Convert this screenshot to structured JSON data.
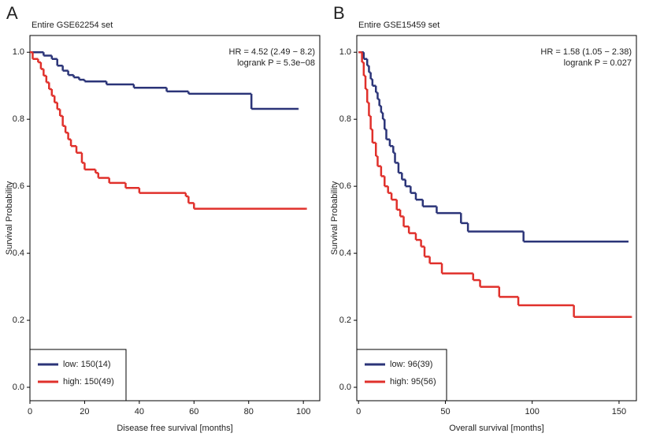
{
  "chart_data": [
    {
      "type": "step",
      "panel": "A",
      "title": "Entire GSE62254 set",
      "annotations": [
        "HR = 4.52 (2.49 − 8.2)",
        "logrank P = 5.3e−08"
      ],
      "x_label": "Disease free survival [months]",
      "y_label": "Survival Probability",
      "xlim": [
        0,
        106
      ],
      "ylim": [
        -0.04,
        1.05
      ],
      "xticks": [
        0,
        20,
        40,
        60,
        80,
        100
      ],
      "yticks": [
        {
          "value": 0,
          "label": "0.0"
        },
        0.2,
        0.4,
        0.6,
        0.8,
        {
          "value": 1,
          "label": "1.0"
        }
      ],
      "legend": "lower left",
      "series": [
        {
          "name": "low: 150(14)",
          "color": "#2b3478",
          "x": [
            0,
            5,
            8,
            10,
            12,
            14,
            16,
            18,
            20,
            28,
            38,
            50,
            58,
            81,
            98
          ],
          "values": [
            1.0,
            0.99,
            0.98,
            0.96,
            0.945,
            0.932,
            0.925,
            0.918,
            0.913,
            0.904,
            0.894,
            0.883,
            0.876,
            0.831,
            0.831
          ]
        },
        {
          "name": "high: 150(49)",
          "color": "#e0302b",
          "x": [
            0,
            1,
            3,
            4,
            5,
            6,
            7,
            8,
            9,
            10,
            11,
            12,
            13,
            14,
            15,
            17,
            19,
            20,
            24,
            25,
            29,
            35,
            40,
            57,
            58,
            60,
            101
          ],
          "values": [
            1.0,
            0.98,
            0.97,
            0.95,
            0.93,
            0.91,
            0.89,
            0.87,
            0.85,
            0.83,
            0.81,
            0.78,
            0.76,
            0.74,
            0.72,
            0.7,
            0.67,
            0.65,
            0.64,
            0.625,
            0.61,
            0.595,
            0.58,
            0.57,
            0.55,
            0.533,
            0.533
          ]
        }
      ]
    },
    {
      "type": "step",
      "panel": "B",
      "title": "Entire GSE15459 set",
      "annotations": [
        "HR = 1.58 (1.05 − 2.38)",
        "logrank P = 0.027"
      ],
      "x_label": "Overall survival [months]",
      "y_label": "Survival Probability",
      "xlim": [
        -1,
        160
      ],
      "ylim": [
        -0.04,
        1.05
      ],
      "xticks": [
        0,
        50,
        100,
        150
      ],
      "yticks": [
        {
          "value": 0,
          "label": "0.0"
        },
        0.2,
        0.4,
        0.6,
        0.8,
        {
          "value": 1,
          "label": "1.0"
        }
      ],
      "legend": "lower left",
      "series": [
        {
          "name": "low: 96(39)",
          "color": "#2b3478",
          "x": [
            0,
            3,
            5,
            6,
            7,
            8,
            10,
            11,
            12,
            13,
            14,
            15,
            16,
            18,
            20,
            21,
            23,
            25,
            27,
            30,
            33,
            37,
            45,
            59,
            63,
            95,
            155
          ],
          "values": [
            1.0,
            0.98,
            0.96,
            0.94,
            0.92,
            0.9,
            0.88,
            0.86,
            0.84,
            0.82,
            0.8,
            0.77,
            0.74,
            0.72,
            0.7,
            0.67,
            0.64,
            0.62,
            0.6,
            0.58,
            0.56,
            0.54,
            0.52,
            0.49,
            0.465,
            0.435,
            0.435
          ]
        },
        {
          "name": "high: 95(56)",
          "color": "#e0302b",
          "x": [
            0,
            2,
            3,
            4,
            5,
            6,
            7,
            8,
            10,
            11,
            13,
            15,
            17,
            19,
            22,
            24,
            26,
            29,
            33,
            36,
            38,
            41,
            48,
            66,
            70,
            81,
            92,
            124,
            157
          ],
          "values": [
            1.0,
            0.97,
            0.93,
            0.89,
            0.85,
            0.81,
            0.77,
            0.73,
            0.69,
            0.66,
            0.63,
            0.6,
            0.58,
            0.56,
            0.53,
            0.51,
            0.48,
            0.46,
            0.44,
            0.42,
            0.39,
            0.37,
            0.34,
            0.32,
            0.3,
            0.27,
            0.245,
            0.21,
            0.21
          ]
        }
      ]
    }
  ]
}
